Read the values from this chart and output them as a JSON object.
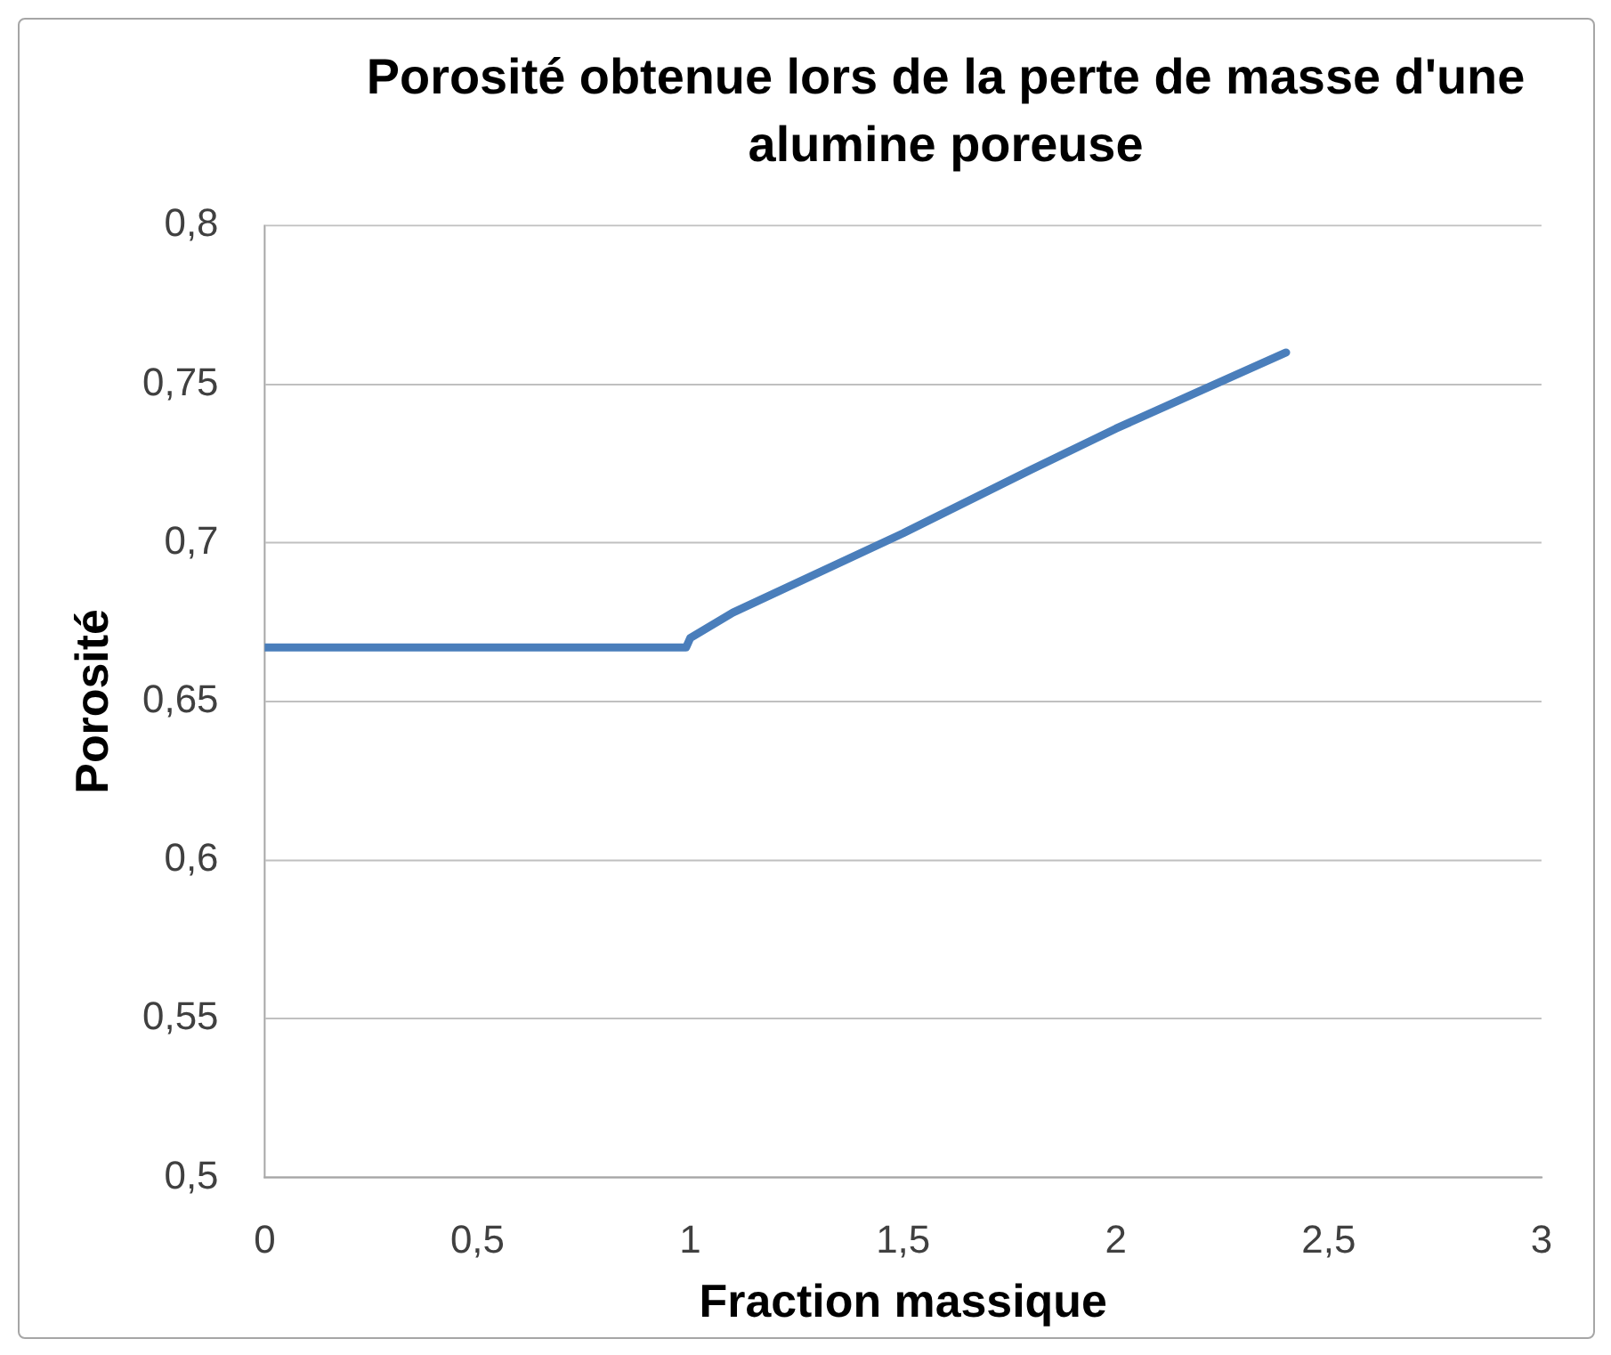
{
  "chart_data": {
    "type": "line",
    "title": "Porosité obtenue lors de la perte de masse d'une alumine poreuse",
    "xlabel": "Fraction massique",
    "ylabel": "Porosité",
    "x": [
      0,
      0.98,
      0.99,
      1.0,
      1.1,
      1.5,
      1.8,
      2.0,
      2.2,
      2.4
    ],
    "series": [
      {
        "color": "#4a7ebb",
        "values": [
          0.667,
          0.667,
          0.667,
          0.67,
          0.678,
          0.703,
          0.723,
          0.736,
          0.748,
          0.76
        ]
      }
    ],
    "xlim": [
      0,
      3
    ],
    "xticks": [
      0,
      {
        "value": 0.5,
        "label": "0,5"
      },
      1,
      {
        "value": 1.5,
        "label": "1,5"
      },
      2,
      {
        "value": 2.5,
        "label": "2,5"
      },
      3
    ],
    "ylim": [
      0.5,
      0.8
    ],
    "yticks": [
      {
        "value": 0.5,
        "label": "0,5"
      },
      {
        "value": 0.55,
        "label": "0,55"
      },
      {
        "value": 0.6,
        "label": "0,6"
      },
      {
        "value": 0.65,
        "label": "0,65"
      },
      {
        "value": 0.7,
        "label": "0,7"
      },
      {
        "value": 0.75,
        "label": "0,75"
      },
      {
        "value": 0.8,
        "label": "0,8"
      }
    ],
    "grid": "y",
    "legend": false,
    "marker": "none",
    "line_style": "solid"
  }
}
